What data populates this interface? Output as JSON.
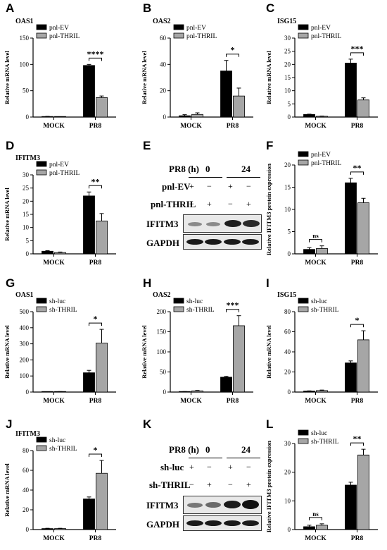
{
  "colors": {
    "ev": "#000000",
    "thril": "#a6a6a6",
    "axis": "#000000"
  },
  "panel_letters": [
    "A",
    "B",
    "C",
    "D",
    "E",
    "F",
    "G",
    "H",
    "I",
    "J",
    "K",
    "L"
  ],
  "chart_data": [
    {
      "id": "A",
      "type": "bar",
      "title": "OAS1",
      "ylabel": "Relative mRNA level",
      "categories": [
        "MOCK",
        "PR8"
      ],
      "ylim": [
        0,
        150
      ],
      "yticks": [
        0,
        50,
        100,
        150
      ],
      "series": [
        {
          "name": "pnl-EV",
          "values": [
            1,
            98
          ],
          "err": [
            0.3,
            2
          ]
        },
        {
          "name": "pnl-THRIL",
          "values": [
            0.5,
            37
          ],
          "err": [
            0.2,
            3
          ]
        }
      ],
      "sig": [
        {
          "cat": 1,
          "label": "****"
        }
      ]
    },
    {
      "id": "B",
      "type": "bar",
      "title": "OAS2",
      "ylabel": "Relative mRNA level",
      "categories": [
        "MOCK",
        "PR8"
      ],
      "ylim": [
        0,
        60
      ],
      "yticks": [
        0,
        20,
        40,
        60
      ],
      "series": [
        {
          "name": "pnl-EV",
          "values": [
            1,
            35
          ],
          "err": [
            0.8,
            8
          ]
        },
        {
          "name": "pnl-THRIL",
          "values": [
            2,
            16
          ],
          "err": [
            1.2,
            6
          ]
        }
      ],
      "sig": [
        {
          "cat": 1,
          "label": "*"
        }
      ]
    },
    {
      "id": "C",
      "type": "bar",
      "title": "ISG15",
      "ylabel": "Relative mRNA level",
      "categories": [
        "MOCK",
        "PR8"
      ],
      "ylim": [
        0,
        30
      ],
      "yticks": [
        0,
        5,
        10,
        15,
        20,
        25,
        30
      ],
      "series": [
        {
          "name": "pnl-EV",
          "values": [
            1,
            20.5
          ],
          "err": [
            0.1,
            1.5
          ]
        },
        {
          "name": "pnl-THRIL",
          "values": [
            0.3,
            6.5
          ],
          "err": [
            0.1,
            0.8
          ]
        }
      ],
      "sig": [
        {
          "cat": 1,
          "label": "***"
        }
      ]
    },
    {
      "id": "D",
      "type": "bar",
      "title": "IFITM3",
      "ylabel": "Relative mRNA level",
      "categories": [
        "MOCK",
        "PR8"
      ],
      "ylim": [
        0,
        30
      ],
      "yticks": [
        0,
        5,
        10,
        15,
        20,
        25,
        30
      ],
      "series": [
        {
          "name": "pnl-EV",
          "values": [
            1,
            22
          ],
          "err": [
            0.2,
            1.5
          ]
        },
        {
          "name": "pnl-THRIL",
          "values": [
            0.5,
            12.5
          ],
          "err": [
            0.2,
            2.8
          ]
        }
      ],
      "sig": [
        {
          "cat": 1,
          "label": "**"
        }
      ]
    },
    {
      "id": "F",
      "type": "bar",
      "title": "",
      "ylabel": "Relative IFITM3 protein expression",
      "categories": [
        "MOCK",
        "PR8"
      ],
      "ylim": [
        0,
        20
      ],
      "yticks": [
        0,
        5,
        10,
        15,
        20
      ],
      "series": [
        {
          "name": "pnl-EV",
          "values": [
            1,
            16
          ],
          "err": [
            0.4,
            1
          ]
        },
        {
          "name": "pnl-THRIL",
          "values": [
            1.2,
            11.5
          ],
          "err": [
            0.6,
            1
          ]
        }
      ],
      "sig": [
        {
          "cat": 0,
          "label": "ns"
        },
        {
          "cat": 1,
          "label": "**"
        }
      ]
    },
    {
      "id": "G",
      "type": "bar",
      "title": "OAS1",
      "ylabel": "Relative mRNA level",
      "categories": [
        "MOCK",
        "PR8"
      ],
      "ylim": [
        0,
        500
      ],
      "yticks": [
        0,
        100,
        200,
        300,
        400,
        500
      ],
      "series": [
        {
          "name": "sh-luc",
          "values": [
            1,
            120
          ],
          "err": [
            0.5,
            15
          ]
        },
        {
          "name": "sh-THRIL",
          "values": [
            2,
            305
          ],
          "err": [
            1,
            85
          ]
        }
      ],
      "sig": [
        {
          "cat": 1,
          "label": "*"
        }
      ]
    },
    {
      "id": "H",
      "type": "bar",
      "title": "OAS2",
      "ylabel": "Relative mRNA level",
      "categories": [
        "MOCK",
        "PR8"
      ],
      "ylim": [
        0,
        200
      ],
      "yticks": [
        0,
        50,
        100,
        150,
        200
      ],
      "series": [
        {
          "name": "sh-luc",
          "values": [
            1,
            37
          ],
          "err": [
            0.3,
            2
          ]
        },
        {
          "name": "sh-THRIL",
          "values": [
            3,
            165
          ],
          "err": [
            1,
            25
          ]
        }
      ],
      "sig": [
        {
          "cat": 1,
          "label": "***"
        }
      ]
    },
    {
      "id": "I",
      "type": "bar",
      "title": "ISG15",
      "ylabel": "Relative mRNA level",
      "categories": [
        "MOCK",
        "PR8"
      ],
      "ylim": [
        0,
        80
      ],
      "yticks": [
        0,
        20,
        40,
        60,
        80
      ],
      "series": [
        {
          "name": "sh-luc",
          "values": [
            1,
            29
          ],
          "err": [
            0.2,
            2
          ]
        },
        {
          "name": "sh-THRIL",
          "values": [
            1.5,
            52
          ],
          "err": [
            0.5,
            9
          ]
        }
      ],
      "sig": [
        {
          "cat": 1,
          "label": "*"
        }
      ]
    },
    {
      "id": "J",
      "type": "bar",
      "title": "IFITM3",
      "ylabel": "Relative mRNA level",
      "categories": [
        "MOCK",
        "PR8"
      ],
      "ylim": [
        0,
        80
      ],
      "yticks": [
        0,
        20,
        40,
        60,
        80
      ],
      "series": [
        {
          "name": "sh-luc",
          "values": [
            1,
            31
          ],
          "err": [
            0.3,
            2
          ]
        },
        {
          "name": "sh-THRIL",
          "values": [
            1,
            57
          ],
          "err": [
            0.3,
            13
          ]
        }
      ],
      "sig": [
        {
          "cat": 1,
          "label": "*"
        }
      ]
    },
    {
      "id": "L",
      "type": "bar",
      "title": "",
      "ylabel": "Relative IFITM3 protein expression",
      "categories": [
        "MOCK",
        "PR8"
      ],
      "ylim": [
        0,
        30
      ],
      "yticks": [
        0,
        10,
        20,
        30
      ],
      "series": [
        {
          "name": "sh-luc",
          "values": [
            1,
            15.5
          ],
          "err": [
            0.5,
            1
          ]
        },
        {
          "name": "sh-THRIL",
          "values": [
            1.5,
            26
          ],
          "err": [
            0.5,
            2
          ]
        }
      ],
      "sig": [
        {
          "cat": 0,
          "label": "ns"
        },
        {
          "cat": 1,
          "label": "**"
        }
      ]
    }
  ],
  "blots": {
    "E": {
      "time_label": "PR8 (h)",
      "times": [
        "0",
        "24"
      ],
      "rows": [
        {
          "label": "pnl-EV",
          "signs": [
            "+",
            "−",
            "+",
            "−"
          ]
        },
        {
          "label": "pnl-THRIL",
          "signs": [
            "−",
            "+",
            "−",
            "+"
          ]
        }
      ],
      "bands": [
        "IFITM3",
        "GAPDH"
      ]
    },
    "K": {
      "time_label": "PR8 (h)",
      "times": [
        "0",
        "24"
      ],
      "rows": [
        {
          "label": "sh-luc",
          "signs": [
            "+",
            "−",
            "+",
            "−"
          ]
        },
        {
          "label": "sh-THRIL",
          "signs": [
            "−",
            "+",
            "−",
            "+"
          ]
        }
      ],
      "bands": [
        "IFITM3",
        "GAPDH"
      ]
    }
  }
}
